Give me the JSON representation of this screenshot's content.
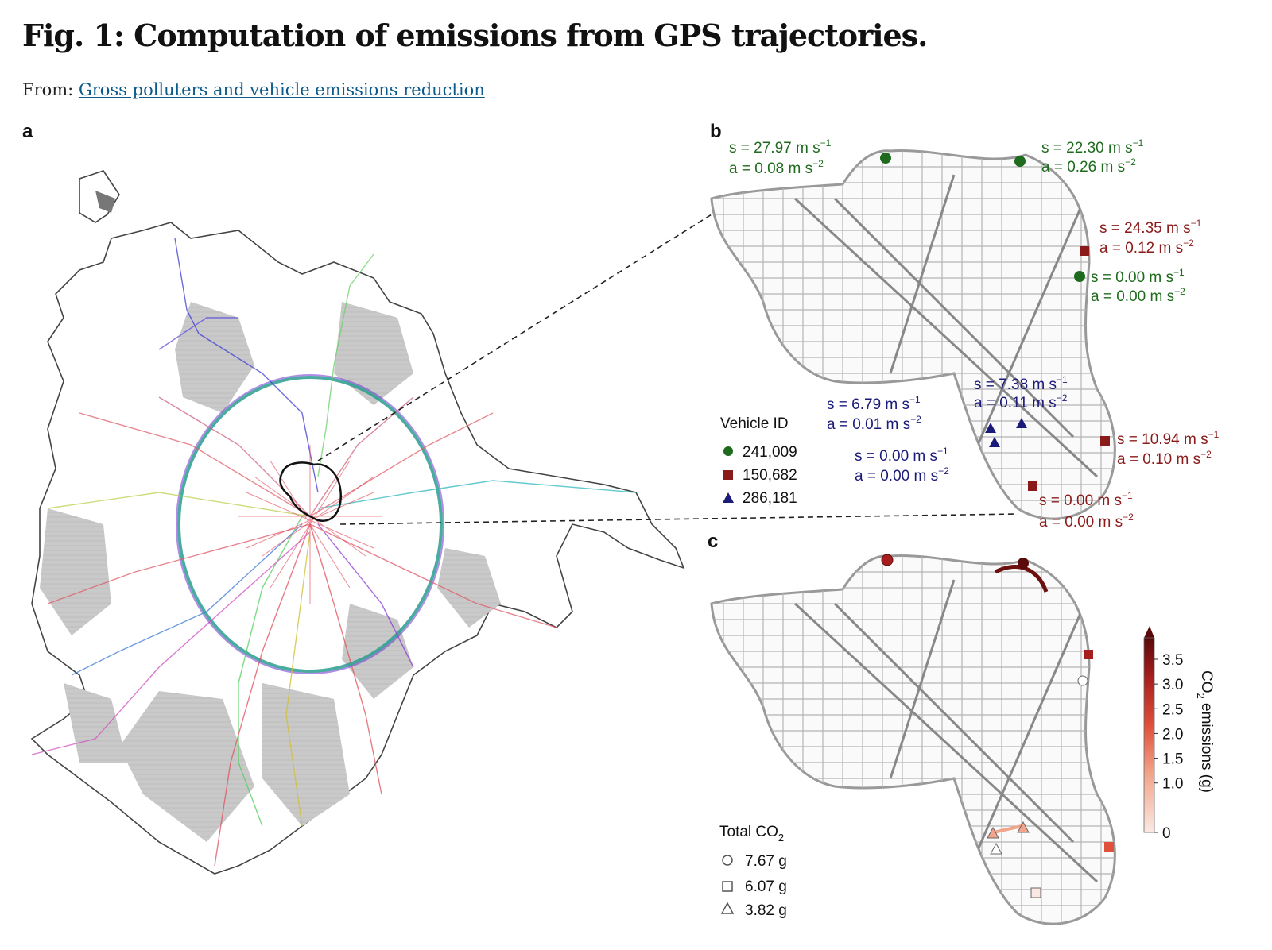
{
  "figure": {
    "title": "Fig. 1: Computation of emissions from GPS trajectories.",
    "from_prefix": "From:",
    "from_link": "Gross polluters and vehicle emissions reduction"
  },
  "panels": {
    "a": "a",
    "b": "b",
    "c": "c"
  },
  "panel_b": {
    "legend_title": "Vehicle ID",
    "vehicles": [
      {
        "id": "241,009",
        "marker": "circle",
        "color": "#1e6b1e"
      },
      {
        "id": "150,682",
        "marker": "square",
        "color": "#8b1a1a"
      },
      {
        "id": "286,181",
        "marker": "triangle",
        "color": "#1a1a7a"
      }
    ],
    "annotations": [
      {
        "vehicle": "241,009",
        "s": "s = 27.97 m s",
        "a": "a = 0.08 m s"
      },
      {
        "vehicle": "241,009",
        "s": "s =  22.30 m s",
        "a": "a = 0.26 m s"
      },
      {
        "vehicle": "150,682",
        "s": "s = 24.35 m s",
        "a": "a = 0.12 m s"
      },
      {
        "vehicle": "241,009",
        "s": "s =  0.00 m s",
        "a": "a = 0.00 m s"
      },
      {
        "vehicle": "286,181",
        "s": "s = 7.38 m s",
        "a": "a = 0.11 m s"
      },
      {
        "vehicle": "286,181",
        "s": "s = 6.79 m s",
        "a": "a = 0.01 m s"
      },
      {
        "vehicle": "150,682",
        "s": "s = 10.94 m s",
        "a": "a = 0.10 m s"
      },
      {
        "vehicle": "286,181",
        "s": "s = 0.00 m s",
        "a": "a = 0.00 m s"
      },
      {
        "vehicle": "150,682",
        "s": "s = 0.00 m s",
        "a": "a = 0.00 m s"
      }
    ],
    "exp_s": "−1",
    "exp_a": "−2"
  },
  "panel_c": {
    "legend_title": "Total CO",
    "legend_sub": "2",
    "totals": [
      {
        "marker": "circle",
        "value": "7.67 g"
      },
      {
        "marker": "square",
        "value": "6.07 g"
      },
      {
        "marker": "triangle",
        "value": "3.82 g"
      }
    ],
    "colorbar": {
      "label": "CO",
      "label_sub": "2",
      "label_rest": " emissions (g)",
      "ticks": [
        "0",
        "1.0",
        "1.5",
        "2.0",
        "2.5",
        "3.0",
        "3.5"
      ],
      "colors": [
        "#fbe8e2",
        "#f2a58a",
        "#e0503a",
        "#a61e1e",
        "#5a0a0a"
      ]
    }
  }
}
